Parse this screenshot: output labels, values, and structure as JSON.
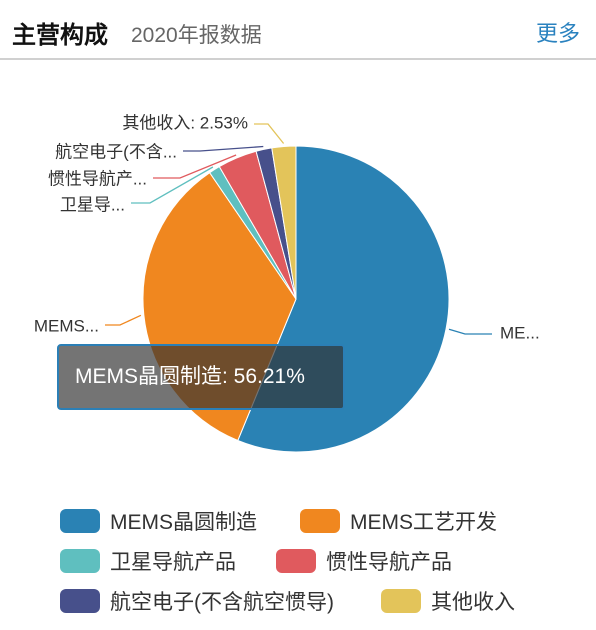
{
  "header": {
    "title": "主营构成",
    "subtitle": "2020年报数据",
    "more_label": "更多"
  },
  "tooltip": {
    "text": "MEMS晶圆制造: 56.21%"
  },
  "chart_data": {
    "type": "pie",
    "series": [
      {
        "name": "MEMS晶圆制造",
        "value": 56.21,
        "color": "#2a82b4",
        "label": "ME..."
      },
      {
        "name": "MEMS工艺开发",
        "value": 34.25,
        "color": "#f0871f",
        "label": "MEMS..."
      },
      {
        "name": "卫星导航产品",
        "value": 1.19,
        "color": "#5fbfbf",
        "label": "卫星导..."
      },
      {
        "name": "惯性导航产品",
        "value": 4.15,
        "color": "#e05a5e",
        "label": "惯性导航产..."
      },
      {
        "name": "航空电子(不含航空惯导)",
        "value": 1.67,
        "color": "#47508b",
        "label": "航空电子(不含..."
      },
      {
        "name": "其他收入",
        "value": 2.53,
        "color": "#e3c45a",
        "label": "其他收入: 2.53%"
      }
    ],
    "legend_position": "bottom"
  }
}
